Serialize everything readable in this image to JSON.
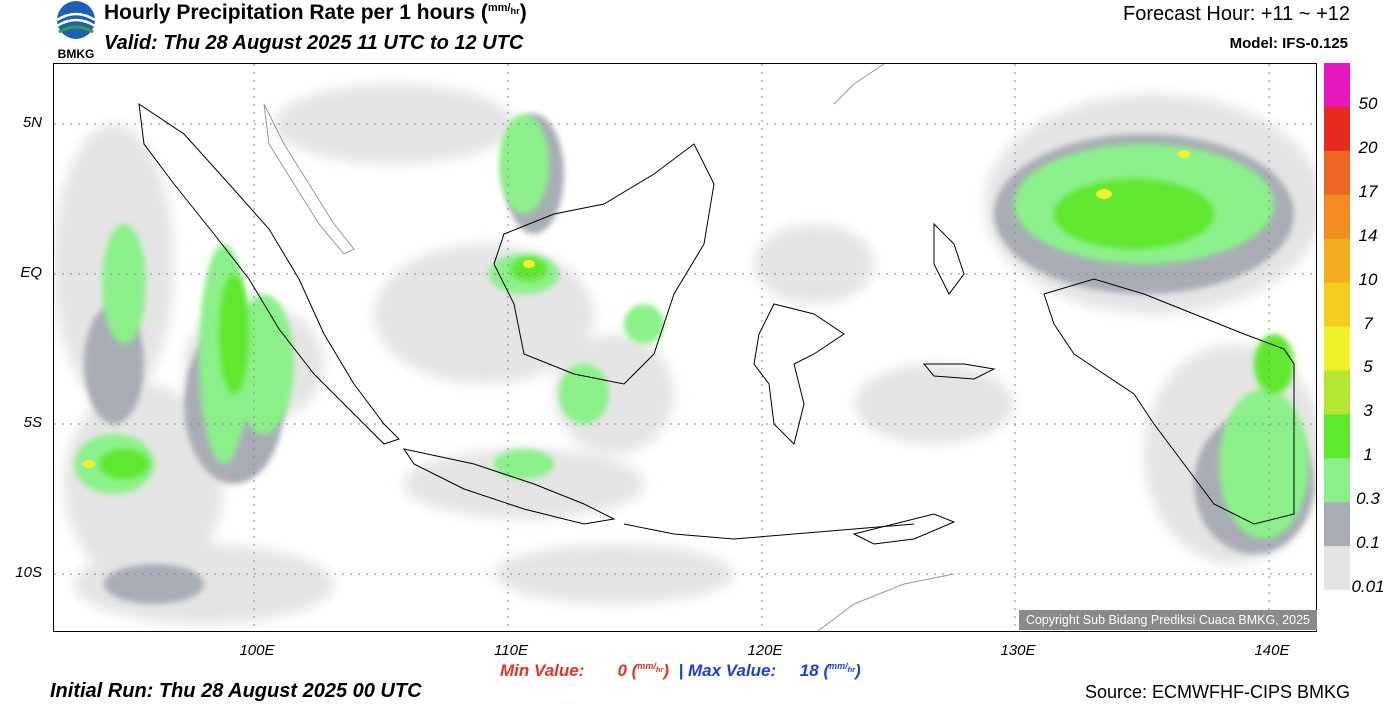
{
  "header": {
    "title_main": "Hourly Precipitation Rate per 1 hours (",
    "title_unit_num": "mm",
    "title_unit_den": "hr",
    "title_close": ")",
    "valid": "Valid: Thu 28 August 2025 11 UTC to 12 UTC",
    "forecast_hour": "Forecast Hour: +11 ~ +12",
    "model": "Model: IFS-0.125",
    "logo_text": "BMKG"
  },
  "map": {
    "lat_labels": [
      "5N",
      "EQ",
      "5S",
      "10S"
    ],
    "lon_labels": [
      "100E",
      "110E",
      "120E",
      "130E",
      "140E"
    ],
    "copyright": "Copyright Sub Bidang Prediksi Cuaca BMKG, 2025"
  },
  "colorbar": {
    "labels": [
      "50",
      "20",
      "17",
      "14",
      "10",
      "7",
      "5",
      "3",
      "1",
      "0.3",
      "0.1",
      "0.01"
    ],
    "colors": [
      "#e619be",
      "#e8291e",
      "#ec6522",
      "#f08c22",
      "#f2ad1e",
      "#f5cc1c",
      "#f2f22a",
      "#b2e633",
      "#5ee82e",
      "#8bf08a",
      "#a8adb5",
      "#e4e4e4"
    ]
  },
  "stats": {
    "min_label": "Min Value:",
    "min_value": "0",
    "sep": "|",
    "max_label": "Max Value:",
    "max_value": "18",
    "unit_num": "mm",
    "unit_den": "hr"
  },
  "footer": {
    "initial_run": "Initial Run: Thu 28 August 2025 00 UTC",
    "source": "Source: ECMWFHF-CIPS BMKG"
  }
}
